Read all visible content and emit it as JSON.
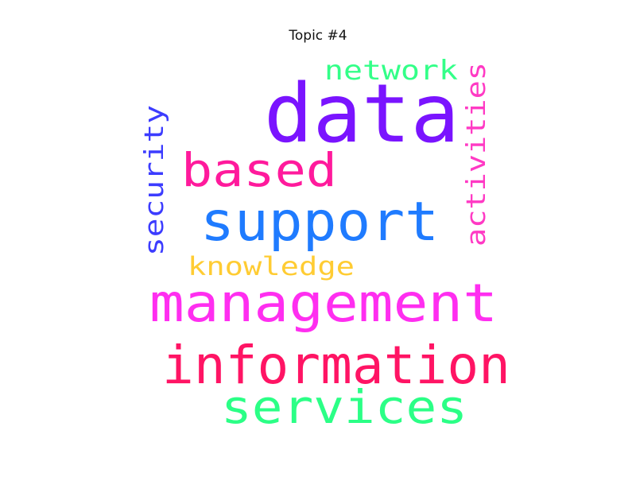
{
  "chart_data": {
    "type": "wordcloud",
    "title": "Topic #4",
    "words": [
      {
        "text": "data",
        "color": "#7a14ff"
      },
      {
        "text": "based",
        "color": "#ff1a9c"
      },
      {
        "text": "support",
        "color": "#1f7bff"
      },
      {
        "text": "management",
        "color": "#ff2ef0"
      },
      {
        "text": "information",
        "color": "#ff1464"
      },
      {
        "text": "services",
        "color": "#2bff86"
      },
      {
        "text": "network",
        "color": "#33ff88"
      },
      {
        "text": "security",
        "color": "#3c3cff"
      },
      {
        "text": "activities",
        "color": "#ff3ac4"
      },
      {
        "text": "knowledge",
        "color": "#ffcc33"
      }
    ]
  }
}
